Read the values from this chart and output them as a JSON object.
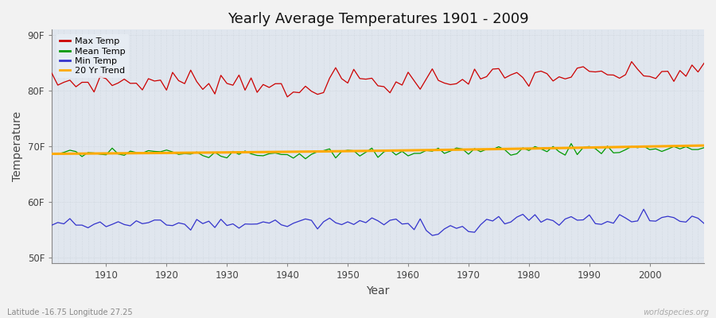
{
  "title": "Yearly Average Temperatures 1901 - 2009",
  "xlabel": "Year",
  "ylabel": "Temperature",
  "year_start": 1901,
  "year_end": 2009,
  "yticks": [
    50,
    60,
    70,
    80,
    90
  ],
  "ytick_labels": [
    "50F",
    "60F",
    "70F",
    "80F",
    "90F"
  ],
  "xticks": [
    1910,
    1920,
    1930,
    1940,
    1950,
    1960,
    1970,
    1980,
    1990,
    2000
  ],
  "ylim": [
    49,
    91
  ],
  "xlim": [
    1901,
    2009
  ],
  "plot_bg_color": "#dde4ec",
  "fig_bg_color": "#f0f0f0",
  "grid_color": "#ffffff",
  "legend_items": [
    {
      "label": "Max Temp",
      "color": "#cc0000"
    },
    {
      "label": "Mean Temp",
      "color": "#009900"
    },
    {
      "label": "Min Temp",
      "color": "#3333cc"
    },
    {
      "label": "20 Yr Trend",
      "color": "#ffaa00"
    }
  ],
  "footer_left": "Latitude -16.75 Longitude 27.25",
  "footer_right": "worldspecies.org"
}
